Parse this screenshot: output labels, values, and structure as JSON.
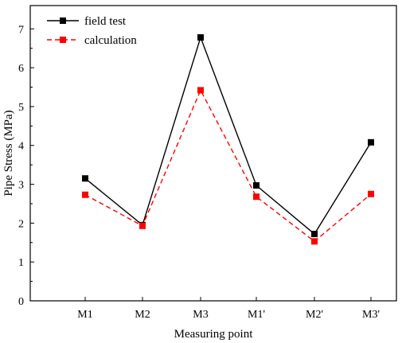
{
  "chart_data": {
    "type": "line",
    "xlabel": "Measuring point",
    "ylabel": "Pipe Stress (MPa)",
    "categories": [
      "M1",
      "M2",
      "M3",
      "M1'",
      "M2'",
      "M3'"
    ],
    "ylim": [
      0,
      7.6
    ],
    "yticks": [
      0,
      1,
      2,
      3,
      4,
      5,
      6,
      7
    ],
    "grid": false,
    "legend_position": "top-left",
    "series": [
      {
        "name": "field test",
        "values": [
          3.15,
          1.95,
          6.78,
          2.97,
          1.72,
          4.08
        ],
        "color": "#000000",
        "line_style": "solid",
        "marker": "square"
      },
      {
        "name": "calculation",
        "values": [
          2.73,
          1.93,
          5.42,
          2.68,
          1.53,
          2.75
        ],
        "color": "#ff0000",
        "line_style": "dashed",
        "marker": "square"
      }
    ]
  }
}
